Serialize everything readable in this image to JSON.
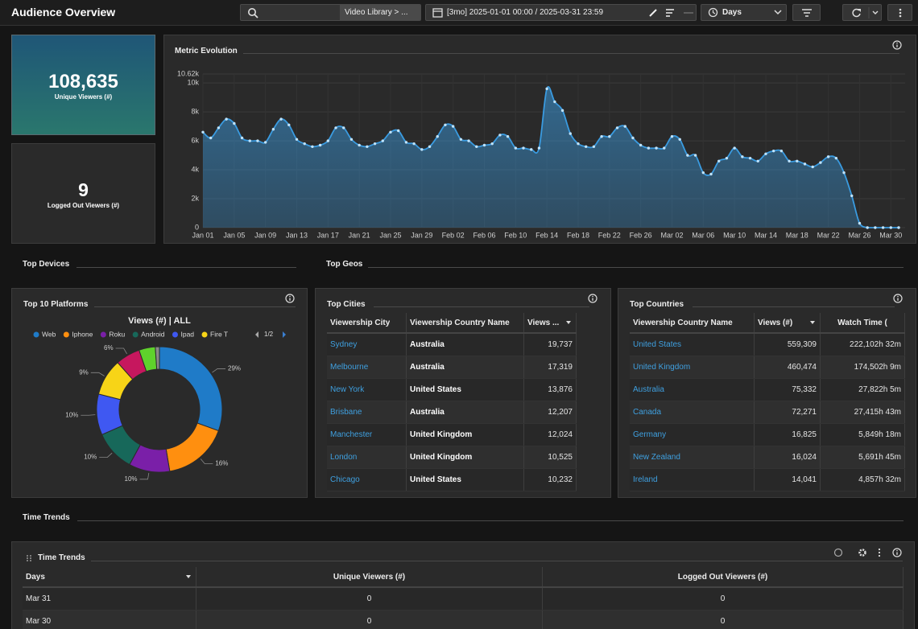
{
  "header": {
    "title": "Audience Overview",
    "breadcrumb": "Video Library > ...",
    "date_range": "[3mo] 2025-01-01 00:00 / 2025-03-31 23:59",
    "granularity": "Days"
  },
  "kpis": [
    {
      "value": "108,635",
      "label": "Unique Viewers (#)"
    },
    {
      "value": "9",
      "label": "Logged Out Viewers (#)"
    }
  ],
  "sections": [
    "Top Devices",
    "Top Geos",
    "Time Trends"
  ],
  "chart_data": [
    {
      "type": "area",
      "title": "Metric Evolution",
      "categories": [
        "Jan 01",
        null,
        null,
        null,
        "Jan 05",
        null,
        null,
        null,
        "Jan 09",
        null,
        null,
        null,
        "Jan 13",
        null,
        null,
        null,
        "Jan 17",
        null,
        null,
        null,
        "Jan 21",
        null,
        null,
        null,
        "Jan 25",
        null,
        null,
        null,
        "Jan 29",
        null,
        null,
        null,
        "Feb 02",
        null,
        null,
        null,
        "Feb 06",
        null,
        null,
        null,
        "Feb 10",
        null,
        null,
        null,
        "Feb 14",
        null,
        null,
        null,
        "Feb 18",
        null,
        null,
        null,
        "Feb 22",
        null,
        null,
        null,
        "Feb 26",
        null,
        null,
        null,
        "Mar 02",
        null,
        null,
        null,
        "Mar 06",
        null,
        null,
        null,
        "Mar 10",
        null,
        null,
        null,
        "Mar 14",
        null,
        null,
        null,
        "Mar 18",
        null,
        null,
        null,
        "Mar 22",
        null,
        null,
        null,
        "Mar 26",
        null,
        null,
        null,
        "Mar 30",
        null
      ],
      "values": [
        6600,
        6200,
        6900,
        7500,
        7200,
        6200,
        6000,
        6000,
        5900,
        6800,
        7500,
        7100,
        6100,
        5800,
        5600,
        5700,
        6000,
        6900,
        6900,
        6100,
        5700,
        5600,
        5800,
        6000,
        6600,
        6700,
        5900,
        5800,
        5400,
        5600,
        6300,
        7100,
        7000,
        6100,
        6000,
        5600,
        5700,
        5800,
        6400,
        6300,
        5500,
        5500,
        5400,
        5500,
        9600,
        8700,
        8100,
        6500,
        5800,
        5600,
        5600,
        6300,
        6300,
        6900,
        7000,
        6200,
        5700,
        5500,
        5500,
        5500,
        6300,
        6100,
        5000,
        5000,
        3800,
        3700,
        4600,
        4800,
        5500,
        4900,
        4800,
        4600,
        5100,
        5300,
        5300,
        4600,
        4600,
        4400,
        4200,
        4500,
        4900,
        4800,
        3800,
        2200,
        300,
        0,
        0,
        0,
        0,
        0
      ],
      "color": "#3a9be0",
      "ylim": [
        0,
        10620
      ],
      "yticks": [
        0,
        {
          "value": 2000,
          "label": "2k"
        },
        {
          "value": 4000,
          "label": "4k"
        },
        {
          "value": 6000,
          "label": "6k"
        },
        {
          "value": 8000,
          "label": "8k"
        },
        {
          "value": 10000,
          "label": "10k"
        },
        {
          "value": 10620,
          "label": "10.62k"
        }
      ],
      "grid": true
    },
    {
      "type": "pie",
      "title": "Top 10 Platforms",
      "subtitle": "Views (#) | ALL",
      "categories": [
        "Web",
        "Iphone",
        "Roku",
        "Android",
        "Ipad",
        "Fire T",
        null,
        null,
        null
      ],
      "values": [
        29,
        16,
        10,
        10,
        10,
        9,
        6,
        4,
        1
      ],
      "value_labels": [
        "29%",
        "16%",
        "10%",
        "10%",
        "10%",
        "9%",
        "6%",
        null,
        null
      ],
      "colors": [
        "#1f7bc8",
        "#ff8f0f",
        "#7a1fa8",
        "#17685a",
        "#3f58f2",
        "#f7d417",
        "#c6175e",
        "#5fd22c",
        "#8a8a8a"
      ],
      "legend_page": "1/2",
      "donut": true
    }
  ],
  "top_cities": {
    "title": "Top Cities",
    "columns": [
      "Viewership City",
      "Viewership Country Name",
      "Views ..."
    ],
    "rows": [
      [
        "Sydney",
        "Australia",
        "19,737"
      ],
      [
        "Melbourne",
        "Australia",
        "17,319"
      ],
      [
        "New York",
        "United States",
        "13,876"
      ],
      [
        "Brisbane",
        "Australia",
        "12,207"
      ],
      [
        "Manchester",
        "United Kingdom",
        "12,024"
      ],
      [
        "London",
        "United Kingdom",
        "10,525"
      ],
      [
        "Chicago",
        "United States",
        "10,232"
      ]
    ]
  },
  "top_countries": {
    "title": "Top Countries",
    "columns": [
      "Viewership Country Name",
      "Views (#)",
      "Watch Time ("
    ],
    "rows": [
      [
        "United States",
        "559,309",
        "222,102h 32m"
      ],
      [
        "United Kingdom",
        "460,474",
        "174,502h 9m"
      ],
      [
        "Australia",
        "75,332",
        "27,822h 5m"
      ],
      [
        "Canada",
        "72,271",
        "27,415h 43m"
      ],
      [
        "Germany",
        "16,825",
        "5,849h 18m"
      ],
      [
        "New Zealand",
        "16,024",
        "5,691h 45m"
      ],
      [
        "Ireland",
        "14,041",
        "4,857h 32m"
      ]
    ]
  },
  "time_trends": {
    "title": "Time Trends",
    "columns": [
      "Days",
      "Unique Viewers (#)",
      "Logged Out Viewers (#)"
    ],
    "rows": [
      [
        "Mar 31",
        "0",
        "0"
      ],
      [
        "Mar 30",
        "0",
        "0"
      ]
    ]
  }
}
